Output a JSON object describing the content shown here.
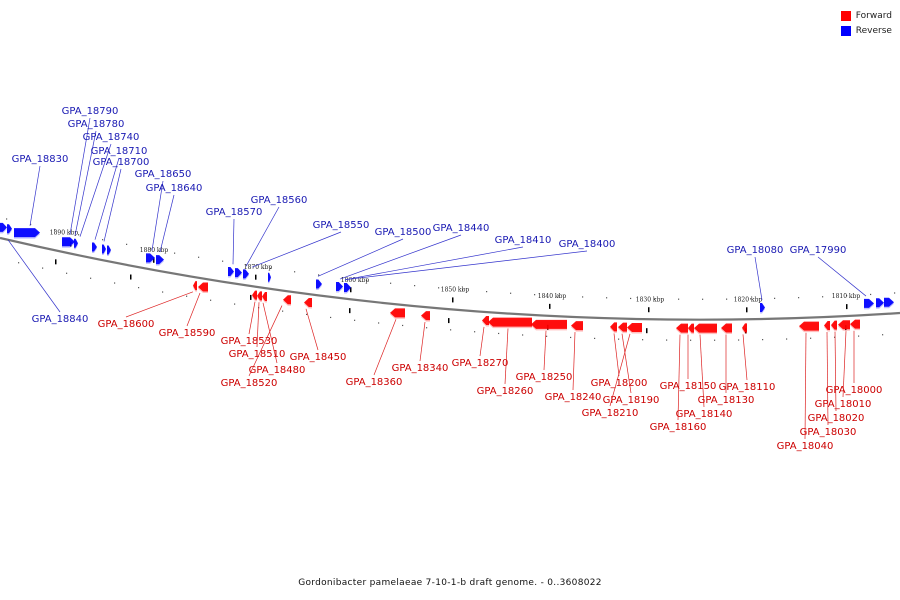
{
  "legend": {
    "forward_label": "Forward",
    "reverse_label": "Reverse"
  },
  "colors": {
    "forward": "#ff0000",
    "reverse": "#0000ff",
    "forward_text": "#cc0000",
    "reverse_text": "#1a1ab3",
    "backbone": "#777777"
  },
  "caption": "Gordonibacter pamelaeae 7-10-1-b draft genome. - 0..3608022",
  "scale_ticks": [
    "1890 kbp",
    "1880 kbp",
    "1870 kbp",
    "1860 kbp",
    "1850 kbp",
    "1840 kbp",
    "1830 kbp",
    "1820 kbp",
    "1810 kbp"
  ],
  "reverse_genes": [
    "GPA_18840",
    "GPA_18830",
    "GPA_18790",
    "GPA_18780",
    "GPA_18740",
    "GPA_18710",
    "GPA_18700",
    "GPA_18650",
    "GPA_18640",
    "GPA_18570",
    "GPA_18560",
    "GPA_18550",
    "GPA_18500",
    "GPA_18440",
    "GPA_18410",
    "GPA_18400",
    "GPA_18080",
    "GPA_17990"
  ],
  "forward_genes": [
    "GPA_18600",
    "GPA_18590",
    "GPA_18530",
    "GPA_18510",
    "GPA_18480",
    "GPA_18520",
    "GPA_18450",
    "GPA_18360",
    "GPA_18340",
    "GPA_18270",
    "GPA_18260",
    "GPA_18250",
    "GPA_18240",
    "GPA_18200",
    "GPA_18190",
    "GPA_18210",
    "GPA_18150",
    "GPA_18140",
    "GPA_18160",
    "GPA_18130",
    "GPA_18110",
    "GPA_18000",
    "GPA_18010",
    "GPA_18020",
    "GPA_18030",
    "GPA_18040"
  ]
}
